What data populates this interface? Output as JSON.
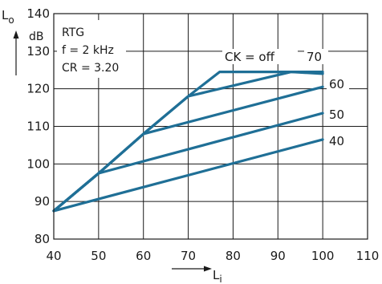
{
  "chart_data": {
    "type": "line",
    "title": "",
    "xlabel": "L",
    "xlabel_sub": "i",
    "ylabel": "L",
    "ylabel_sub": "o",
    "yunit": "dB",
    "xlim": [
      40,
      110
    ],
    "ylim": [
      80,
      140
    ],
    "xticks": [
      40,
      50,
      60,
      70,
      80,
      90,
      100,
      110
    ],
    "yticks": [
      80,
      90,
      100,
      110,
      120,
      130,
      140
    ],
    "grid": true,
    "info_lines": [
      "RTG",
      "f = 2 kHz",
      "CR = 3.20"
    ],
    "series": [
      {
        "name": "CK = off",
        "x": [
          40,
          50,
          60,
          70,
          77,
          100
        ],
        "y": [
          87.5,
          97.5,
          108,
          118,
          124.5,
          124.5
        ]
      },
      {
        "name": "70",
        "x": [
          40,
          50,
          60,
          70,
          93,
          100
        ],
        "y": [
          87.5,
          97.5,
          108,
          118,
          124.5,
          124
        ]
      },
      {
        "name": "60",
        "x": [
          40,
          50,
          60,
          100
        ],
        "y": [
          87.5,
          97.5,
          108,
          120.5
        ]
      },
      {
        "name": "50",
        "x": [
          40,
          50,
          100
        ],
        "y": [
          87.5,
          97.5,
          113.5
        ]
      },
      {
        "name": "40",
        "x": [
          40,
          100
        ],
        "y": [
          87.5,
          106.5
        ]
      }
    ]
  }
}
